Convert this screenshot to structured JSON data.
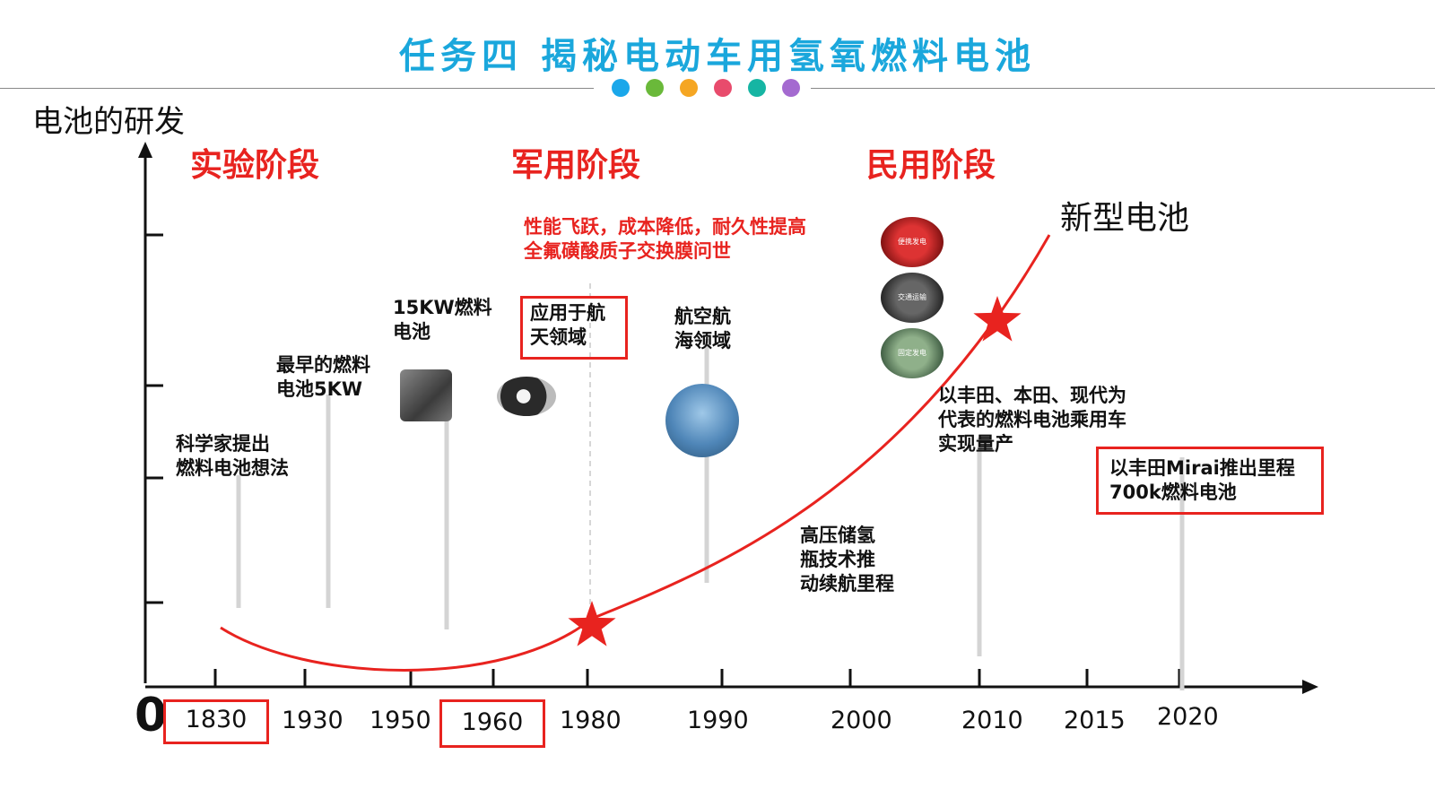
{
  "title": "任务四 揭秘电动车用氢氧燃料电池",
  "header_dot_colors": [
    "#1aa7ea",
    "#6ab93a",
    "#f5a623",
    "#e84b6c",
    "#16b5a3",
    "#a46ad0"
  ],
  "y_axis_label": "电池的研发",
  "phases": [
    "实验阶段",
    "军用阶段",
    "民用阶段"
  ],
  "x_axis": {
    "zero": "0",
    "ticks": [
      "1830",
      "1930",
      "1950",
      "1960",
      "1980",
      "1990",
      "2000",
      "2010",
      "2015",
      "2020"
    ],
    "boxed": [
      "1830",
      "1960"
    ]
  },
  "notes": {
    "scientist": "科学家提出\n燃料电池想法",
    "earliest": "最早的燃料\n电池5KW",
    "kw15": "15KW燃料\n电池",
    "aerospace": "应用于航\n天领域",
    "performance": "性能飞跃，成本降低，耐久性提高\n全氟磺酸质子交换膜问世",
    "aviation": "航空航\n海领域",
    "highpressure": "高压储氢\n瓶技术推\n动续航里程",
    "mass_production": "以丰田、本田、现代为\n代表的燃料电池乘用车\n实现量产",
    "mirai": "以丰田Mirai推出里程\n700k燃料电池"
  },
  "new_battery": "新型电池",
  "photo_captions": [
    "便携发电",
    "交通运输",
    "固定发电"
  ],
  "colors": {
    "accent_red": "#e8231f",
    "title_blue": "#1aa7dc"
  }
}
